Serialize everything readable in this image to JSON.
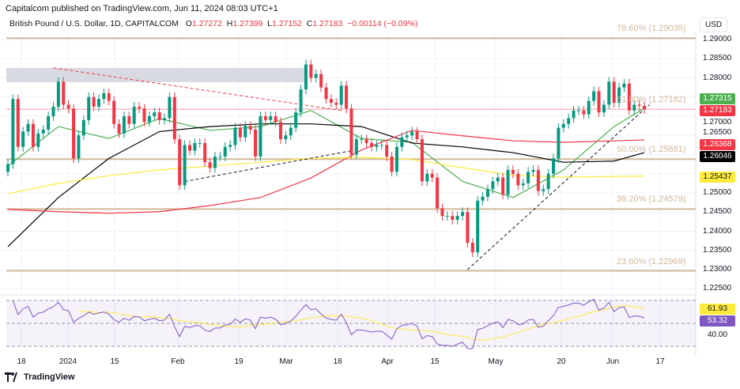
{
  "header": {
    "published": "Capitalcom published on TradingView.com, Jun 11, 2024 08:03 UTC+1"
  },
  "legend": {
    "symbol": "British Pound / U.S. Dollar, 1D, CAPITALCOM",
    "o_label": "O",
    "o": "1.27272",
    "h_label": "H",
    "h": "1.27399",
    "l_label": "L",
    "l": "1.27152",
    "c_label": "C",
    "c": "1.27183",
    "change": "−0.00114 (−0.09%)"
  },
  "currency": "USD",
  "price_axis": [
    "1.29000",
    "1.28500",
    "1.28000",
    "1.27000",
    "1.26500",
    "1.25000",
    "1.24500",
    "1.24000",
    "1.23500",
    "1.23000",
    "1.22500"
  ],
  "price_tags": [
    {
      "value": "1.27315",
      "bg": "#4caf50",
      "fg": "#ffffff"
    },
    {
      "value": "1.27183",
      "bg": "#f23645",
      "fg": "#ffffff"
    },
    {
      "value": "1.26368",
      "bg": "#f23645",
      "fg": "#ffffff"
    },
    {
      "value": "1.26046",
      "bg": "#000000",
      "fg": "#ffffff"
    },
    {
      "value": "1.25437",
      "bg": "#ffeb3b",
      "fg": "#131722"
    }
  ],
  "fib_levels": [
    {
      "label": "78.60% (1.29035)",
      "price": 1.29035
    },
    {
      "label": "61.80% (1.27182)",
      "price": 1.27182
    },
    {
      "label": "50.00% (1.25881)",
      "price": 1.25881
    },
    {
      "label": "38.20% (1.24579)",
      "price": 1.24579
    },
    {
      "label": "23.60% (1.22969)",
      "price": 1.22969
    }
  ],
  "rsi": {
    "ma_value": "61.93",
    "ma_color": "#ffeb3b",
    "value": "53.32",
    "color": "#7e57c2",
    "axis_label": "40.00",
    "levels": [
      70,
      50,
      30
    ]
  },
  "x_axis": [
    "18",
    "2024",
    "15",
    "Feb",
    "19",
    "Mar",
    "18",
    "Apr",
    "15",
    "May",
    "20",
    "Jun",
    "17"
  ],
  "footer": {
    "brand": "TradingView"
  },
  "colors": {
    "up": "#089981",
    "down": "#f23645",
    "grid": "#f0f3fa",
    "fib": "#d2b89a"
  },
  "chart_data": {
    "type": "candlestick",
    "ylim": [
      1.2225,
      1.2925
    ],
    "closes": [
      1.2575,
      1.2745,
      1.262,
      1.266,
      1.268,
      1.262,
      1.2655,
      1.2665,
      1.27,
      1.2725,
      1.279,
      1.273,
      1.272,
      1.259,
      1.265,
      1.269,
      1.275,
      1.2725,
      1.2745,
      1.276,
      1.274,
      1.268,
      1.2655,
      1.27,
      1.268,
      1.2725,
      1.272,
      1.2685,
      1.27,
      1.271,
      1.269,
      1.2695,
      1.275,
      1.264,
      1.252,
      1.2625,
      1.261,
      1.263,
      1.263,
      1.258,
      1.2565,
      1.2595,
      1.2595,
      1.262,
      1.2625,
      1.267,
      1.2645,
      1.2675,
      1.2665,
      1.2595,
      1.27,
      1.269,
      1.27,
      1.2685,
      1.264,
      1.265,
      1.267,
      1.271,
      1.277,
      1.2835,
      1.28,
      1.281,
      1.2775,
      1.2745,
      1.2735,
      1.273,
      1.278,
      1.272,
      1.26,
      1.264,
      1.264,
      1.263,
      1.262,
      1.2625,
      1.2625,
      1.2595,
      1.2555,
      1.262,
      1.2645,
      1.265,
      1.266,
      1.264,
      1.253,
      1.255,
      1.254,
      1.246,
      1.244,
      1.244,
      1.243,
      1.244,
      1.245,
      1.237,
      1.2345,
      1.248,
      1.249,
      1.251,
      1.253,
      1.254,
      1.2495,
      1.256,
      1.255,
      1.252,
      1.2525,
      1.2555,
      1.256,
      1.2505,
      1.251,
      1.255,
      1.259,
      1.267,
      1.268,
      1.2695,
      1.2715,
      1.2715,
      1.2705,
      1.274,
      1.2765,
      1.271,
      1.273,
      1.279,
      1.2735,
      1.2775,
      1.2785,
      1.2715,
      1.273,
      1.2727,
      1.27183
    ],
    "ma_sample_every": 10,
    "moving_averages": [
      {
        "color": "#4caf50",
        "values": [
          1.257,
          1.2673,
          1.2642,
          1.2694,
          1.2663,
          1.2673,
          1.2715,
          1.2642,
          1.2632,
          1.253,
          1.2488,
          1.256,
          1.2673,
          1.2721
        ]
      },
      {
        "color": "#000000",
        "values": [
          1.236,
          1.2488,
          1.259,
          1.266,
          1.2673,
          1.268,
          1.268,
          1.2673,
          1.263,
          1.262,
          1.2605,
          1.258,
          1.2583,
          1.2605
        ]
      },
      {
        "color": "#f23645",
        "values": [
          1.2457,
          1.2451,
          1.2447,
          1.2451,
          1.2467,
          1.2488,
          1.2539,
          1.2612,
          1.2663,
          1.2649,
          1.2636,
          1.2632,
          1.2636,
          1.2638
        ]
      },
      {
        "color": "#ffeb3b",
        "values": [
          1.2498,
          1.2525,
          1.2545,
          1.256,
          1.257,
          1.258,
          1.259,
          1.2593,
          1.2587,
          1.2566,
          1.2546,
          1.2541,
          1.2543,
          1.2544
        ]
      }
    ],
    "zone": {
      "from": 1.2789,
      "to": 1.2826
    },
    "trendlines": [
      {
        "style": "red-dashed",
        "from": [
          9,
          1.2826
        ],
        "to": [
          66,
          1.2715
        ]
      },
      {
        "style": "black-dashed",
        "from": [
          35,
          1.253
        ],
        "to": [
          68,
          1.261
        ]
      },
      {
        "style": "black-dashed",
        "from": [
          91,
          1.23
        ],
        "to": [
          127,
          1.273
        ]
      }
    ]
  }
}
